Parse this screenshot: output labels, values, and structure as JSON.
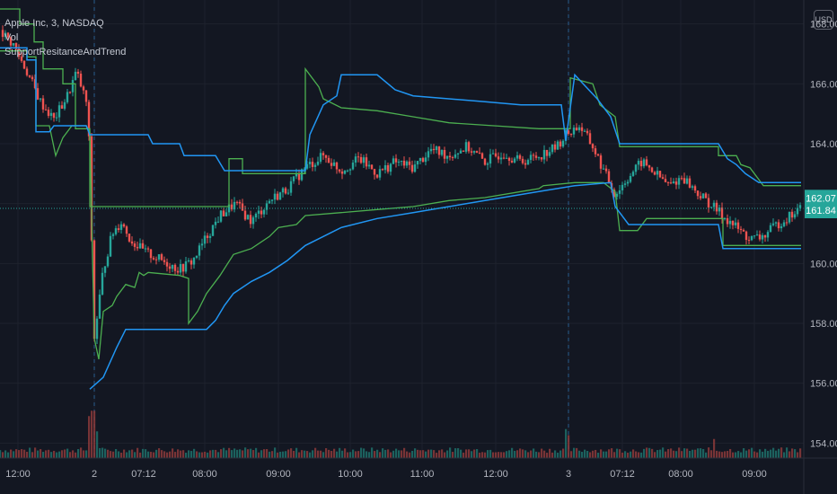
{
  "legend": {
    "symbol_line": "Apple Inc, 3, NASDAQ",
    "vol_label": "Vol",
    "indicator_label": "SupportResitanceAndTrend"
  },
  "currency_badge": "USD",
  "price_labels": {
    "upper": "162.07",
    "current": "161.84"
  },
  "colors": {
    "background": "#131722",
    "grid": "#1e222d",
    "up": "#26a69a",
    "down": "#ef5350",
    "support_line": "#2196f3",
    "resistance_line": "#4caf50",
    "price_badge_upper": "#26a69a",
    "price_badge_current": "#26a69a"
  },
  "chart_data": {
    "type": "candlestick",
    "symbol": "Apple Inc, 3, NASDAQ",
    "y_axis": {
      "ticks": [
        154,
        156,
        158,
        160,
        162,
        164,
        166,
        168
      ],
      "tick_labels": [
        "154.00",
        "156.00",
        "158.00",
        "160.00",
        "162.00",
        "164.00",
        "166.00",
        "168.00"
      ],
      "range": [
        153.5,
        168.8
      ]
    },
    "x_axis": {
      "tick_labels": [
        "12:00",
        "2",
        "07:12",
        "08:00",
        "09:00",
        "10:00",
        "11:00",
        "12:00",
        "3",
        "07:12",
        "08:00",
        "09:00"
      ]
    },
    "session_breaks": [
      "2",
      "3"
    ],
    "grid": true,
    "price_path": [
      [
        0,
        167.8
      ],
      [
        15,
        167.3
      ],
      [
        30,
        166.4
      ],
      [
        45,
        165.4
      ],
      [
        60,
        164.8
      ],
      [
        75,
        165.6
      ],
      [
        85,
        166.4
      ],
      [
        98,
        165.2
      ],
      [
        105,
        157.5
      ],
      [
        115,
        159.8
      ],
      [
        125,
        161.0
      ],
      [
        135,
        161.4
      ],
      [
        145,
        160.8
      ],
      [
        160,
        160.4
      ],
      [
        180,
        160.1
      ],
      [
        200,
        159.8
      ],
      [
        215,
        160.1
      ],
      [
        230,
        160.9
      ],
      [
        245,
        161.6
      ],
      [
        262,
        162.0
      ],
      [
        280,
        161.4
      ],
      [
        300,
        162.1
      ],
      [
        320,
        162.5
      ],
      [
        340,
        163.2
      ],
      [
        360,
        163.6
      ],
      [
        380,
        163.1
      ],
      [
        400,
        163.5
      ],
      [
        420,
        163.0
      ],
      [
        440,
        163.4
      ],
      [
        460,
        163.2
      ],
      [
        480,
        163.8
      ],
      [
        500,
        163.6
      ],
      [
        520,
        163.9
      ],
      [
        540,
        163.4
      ],
      [
        560,
        163.7
      ],
      [
        580,
        163.4
      ],
      [
        600,
        163.6
      ],
      [
        620,
        163.9
      ],
      [
        630,
        164.3
      ],
      [
        645,
        164.6
      ],
      [
        660,
        163.9
      ],
      [
        672,
        163.1
      ],
      [
        685,
        162.3
      ],
      [
        700,
        162.9
      ],
      [
        715,
        163.4
      ],
      [
        730,
        163.0
      ],
      [
        745,
        162.6
      ],
      [
        760,
        162.9
      ],
      [
        775,
        162.4
      ],
      [
        790,
        162.0
      ],
      [
        805,
        161.6
      ],
      [
        820,
        161.2
      ],
      [
        835,
        160.8
      ],
      [
        850,
        160.9
      ],
      [
        865,
        161.3
      ],
      [
        880,
        161.6
      ],
      [
        892,
        161.84
      ]
    ],
    "resistance_line": [
      [
        0,
        168.5
      ],
      [
        22,
        168.5
      ],
      [
        22,
        168.0
      ],
      [
        38,
        168.0
      ],
      [
        38,
        167.4
      ],
      [
        48,
        167.4
      ],
      [
        48,
        166.5
      ],
      [
        70,
        166.5
      ],
      [
        70,
        166.0
      ],
      [
        84,
        166.0
      ],
      [
        84,
        164.5
      ],
      [
        100,
        164.5
      ],
      [
        100,
        161.9
      ],
      [
        255,
        161.9
      ],
      [
        255,
        163.5
      ],
      [
        270,
        163.5
      ],
      [
        270,
        163.0
      ],
      [
        340,
        163.0
      ],
      [
        340,
        166.5
      ],
      [
        355,
        165.9
      ],
      [
        360,
        165.5
      ],
      [
        380,
        165.2
      ],
      [
        420,
        165.1
      ],
      [
        460,
        164.9
      ],
      [
        500,
        164.7
      ],
      [
        550,
        164.6
      ],
      [
        600,
        164.5
      ],
      [
        635,
        164.5
      ],
      [
        635,
        166.2
      ],
      [
        660,
        166.0
      ],
      [
        668,
        165.3
      ],
      [
        685,
        164.9
      ],
      [
        690,
        163.9
      ],
      [
        800,
        163.9
      ],
      [
        800,
        163.6
      ],
      [
        820,
        163.6
      ],
      [
        825,
        163.3
      ],
      [
        835,
        163.2
      ],
      [
        840,
        163.0
      ],
      [
        850,
        162.6
      ],
      [
        892,
        162.6
      ]
    ],
    "support_line": [
      [
        0,
        167.1
      ],
      [
        30,
        167.1
      ],
      [
        30,
        166.9
      ],
      [
        40,
        166.9
      ],
      [
        40,
        164.6
      ],
      [
        55,
        164.6
      ],
      [
        62,
        163.6
      ],
      [
        70,
        164.2
      ],
      [
        80,
        164.6
      ],
      [
        96,
        164.6
      ],
      [
        100,
        164.4
      ],
      [
        105,
        157.5
      ],
      [
        110,
        156.8
      ],
      [
        115,
        158.4
      ],
      [
        125,
        158.6
      ],
      [
        130,
        158.9
      ],
      [
        140,
        159.3
      ],
      [
        150,
        159.2
      ],
      [
        155,
        159.7
      ],
      [
        160,
        159.6
      ],
      [
        165,
        159.7
      ],
      [
        200,
        159.6
      ],
      [
        210,
        159.5
      ],
      [
        210,
        158.0
      ],
      [
        220,
        158.4
      ],
      [
        230,
        159.0
      ],
      [
        245,
        159.6
      ],
      [
        260,
        160.3
      ],
      [
        280,
        160.5
      ],
      [
        300,
        160.9
      ],
      [
        310,
        161.2
      ],
      [
        330,
        161.3
      ],
      [
        340,
        161.6
      ],
      [
        380,
        161.7
      ],
      [
        420,
        161.8
      ],
      [
        460,
        161.9
      ],
      [
        500,
        162.1
      ],
      [
        540,
        162.2
      ],
      [
        580,
        162.4
      ],
      [
        600,
        162.5
      ],
      [
        605,
        162.6
      ],
      [
        640,
        162.7
      ],
      [
        660,
        162.7
      ],
      [
        672,
        162.7
      ],
      [
        685,
        162.4
      ],
      [
        690,
        161.1
      ],
      [
        710,
        161.1
      ],
      [
        720,
        161.5
      ],
      [
        805,
        161.5
      ],
      [
        805,
        160.6
      ],
      [
        892,
        160.6
      ]
    ],
    "support_line_2": [
      [
        0,
        167.2
      ],
      [
        30,
        167.2
      ],
      [
        30,
        166.8
      ],
      [
        40,
        166.8
      ],
      [
        40,
        164.4
      ],
      [
        55,
        164.4
      ],
      [
        60,
        164.6
      ],
      [
        96,
        164.6
      ],
      [
        100,
        164.3
      ],
      [
        165,
        164.3
      ],
      [
        170,
        164.0
      ],
      [
        200,
        164.0
      ],
      [
        205,
        163.6
      ],
      [
        240,
        163.6
      ],
      [
        250,
        163.1
      ],
      [
        340,
        163.1
      ],
      [
        345,
        164.3
      ],
      [
        360,
        165.3
      ],
      [
        375,
        165.6
      ],
      [
        380,
        166.3
      ],
      [
        420,
        166.3
      ],
      [
        440,
        165.8
      ],
      [
        460,
        165.6
      ],
      [
        540,
        165.4
      ],
      [
        580,
        165.3
      ],
      [
        625,
        165.3
      ],
      [
        630,
        164.1
      ],
      [
        640,
        166.3
      ],
      [
        665,
        165.5
      ],
      [
        680,
        164.9
      ],
      [
        690,
        164.0
      ],
      [
        800,
        164.0
      ],
      [
        810,
        163.5
      ],
      [
        820,
        163.3
      ],
      [
        830,
        163.0
      ],
      [
        845,
        162.7
      ],
      [
        892,
        162.7
      ]
    ],
    "support_line_3": [
      [
        100,
        155.8
      ],
      [
        115,
        156.2
      ],
      [
        130,
        157.2
      ],
      [
        140,
        157.8
      ],
      [
        230,
        157.8
      ],
      [
        240,
        158.1
      ],
      [
        250,
        158.6
      ],
      [
        260,
        159.0
      ],
      [
        280,
        159.4
      ],
      [
        300,
        159.7
      ],
      [
        320,
        160.1
      ],
      [
        340,
        160.6
      ],
      [
        360,
        160.9
      ],
      [
        380,
        161.2
      ],
      [
        420,
        161.5
      ],
      [
        460,
        161.7
      ],
      [
        500,
        161.9
      ],
      [
        540,
        162.1
      ],
      [
        600,
        162.4
      ],
      [
        640,
        162.6
      ],
      [
        680,
        162.7
      ],
      [
        685,
        161.9
      ],
      [
        700,
        161.3
      ],
      [
        800,
        161.3
      ],
      [
        805,
        160.5
      ],
      [
        892,
        160.5
      ]
    ],
    "volume_spikes": [
      [
        100,
        0.55
      ],
      [
        103,
        0.62
      ],
      [
        106,
        0.35
      ],
      [
        630,
        0.38
      ],
      [
        633,
        0.3
      ],
      [
        795,
        0.25
      ]
    ]
  }
}
